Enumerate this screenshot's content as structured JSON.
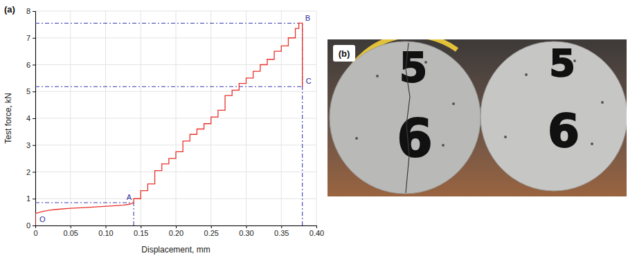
{
  "chart_data": {
    "type": "line",
    "panel_label": "(a)",
    "x_label": "Displacement, mm",
    "y_label": "Test force, kN",
    "x": [
      0,
      0,
      0.01,
      0.02,
      0.03,
      0.05,
      0.07,
      0.09,
      0.11,
      0.125,
      0.135,
      0.14,
      0.14,
      0.15,
      0.15,
      0.16,
      0.16,
      0.17,
      0.17,
      0.18,
      0.18,
      0.19,
      0.19,
      0.2,
      0.2,
      0.21,
      0.21,
      0.22,
      0.22,
      0.23,
      0.23,
      0.24,
      0.24,
      0.25,
      0.25,
      0.26,
      0.26,
      0.27,
      0.27,
      0.28,
      0.28,
      0.29,
      0.29,
      0.3,
      0.3,
      0.31,
      0.31,
      0.32,
      0.32,
      0.33,
      0.33,
      0.34,
      0.34,
      0.35,
      0.35,
      0.36,
      0.36,
      0.37,
      0.37,
      0.375,
      0.375,
      0.38,
      0.38
    ],
    "values": [
      0,
      0.45,
      0.52,
      0.57,
      0.6,
      0.64,
      0.67,
      0.7,
      0.73,
      0.76,
      0.8,
      0.85,
      1.0,
      1.0,
      1.3,
      1.3,
      1.55,
      1.55,
      2.05,
      2.05,
      2.3,
      2.3,
      2.5,
      2.5,
      2.75,
      2.75,
      3.15,
      3.15,
      3.4,
      3.4,
      3.6,
      3.6,
      3.8,
      3.8,
      4.05,
      4.05,
      4.3,
      4.3,
      4.85,
      4.85,
      5.05,
      5.05,
      5.3,
      5.3,
      5.5,
      5.5,
      5.75,
      5.75,
      6.0,
      6.0,
      6.2,
      6.2,
      6.5,
      6.5,
      6.7,
      6.7,
      7.0,
      7.0,
      7.35,
      7.35,
      7.55,
      7.55,
      5.18
    ],
    "color": "#e8312a",
    "xlim": [
      0,
      0.4
    ],
    "xticks": [
      0,
      0.05,
      {
        "value": 0.1,
        "label": "0.10"
      },
      0.15,
      {
        "value": 0.2,
        "label": "0.20"
      },
      0.25,
      {
        "value": 0.3,
        "label": "0.30"
      },
      0.35,
      {
        "value": 0.4,
        "label": "0.40"
      }
    ],
    "ylim": [
      0,
      8
    ],
    "yticks": [
      0,
      1,
      2,
      3,
      4,
      5,
      6,
      7,
      8
    ],
    "grid": true,
    "annotations": [
      {
        "text": "O",
        "x": 0,
        "y": 0
      },
      {
        "text": "A",
        "x": 0.14,
        "y": 0.85
      },
      {
        "text": "B",
        "x": 0.38,
        "y": 7.55
      },
      {
        "text": "C",
        "x": 0.38,
        "y": 5.18
      }
    ],
    "guides": [
      {
        "x": [
          0,
          0.14
        ],
        "y": [
          0.85,
          0.85
        ]
      },
      {
        "x": [
          0.14,
          0.14
        ],
        "y": [
          0,
          0.85
        ]
      },
      {
        "x": [
          0,
          0.38
        ],
        "y": [
          7.55,
          7.55
        ]
      },
      {
        "x": [
          0,
          0.38
        ],
        "y": [
          5.18,
          5.18
        ]
      },
      {
        "x": [
          0.38,
          0.38
        ],
        "y": [
          0,
          7.55
        ]
      }
    ]
  },
  "panel_b": {
    "panel_label": "(b)",
    "specimen_labels": [
      [
        "5",
        "6"
      ],
      [
        "5",
        "6"
      ]
    ]
  }
}
